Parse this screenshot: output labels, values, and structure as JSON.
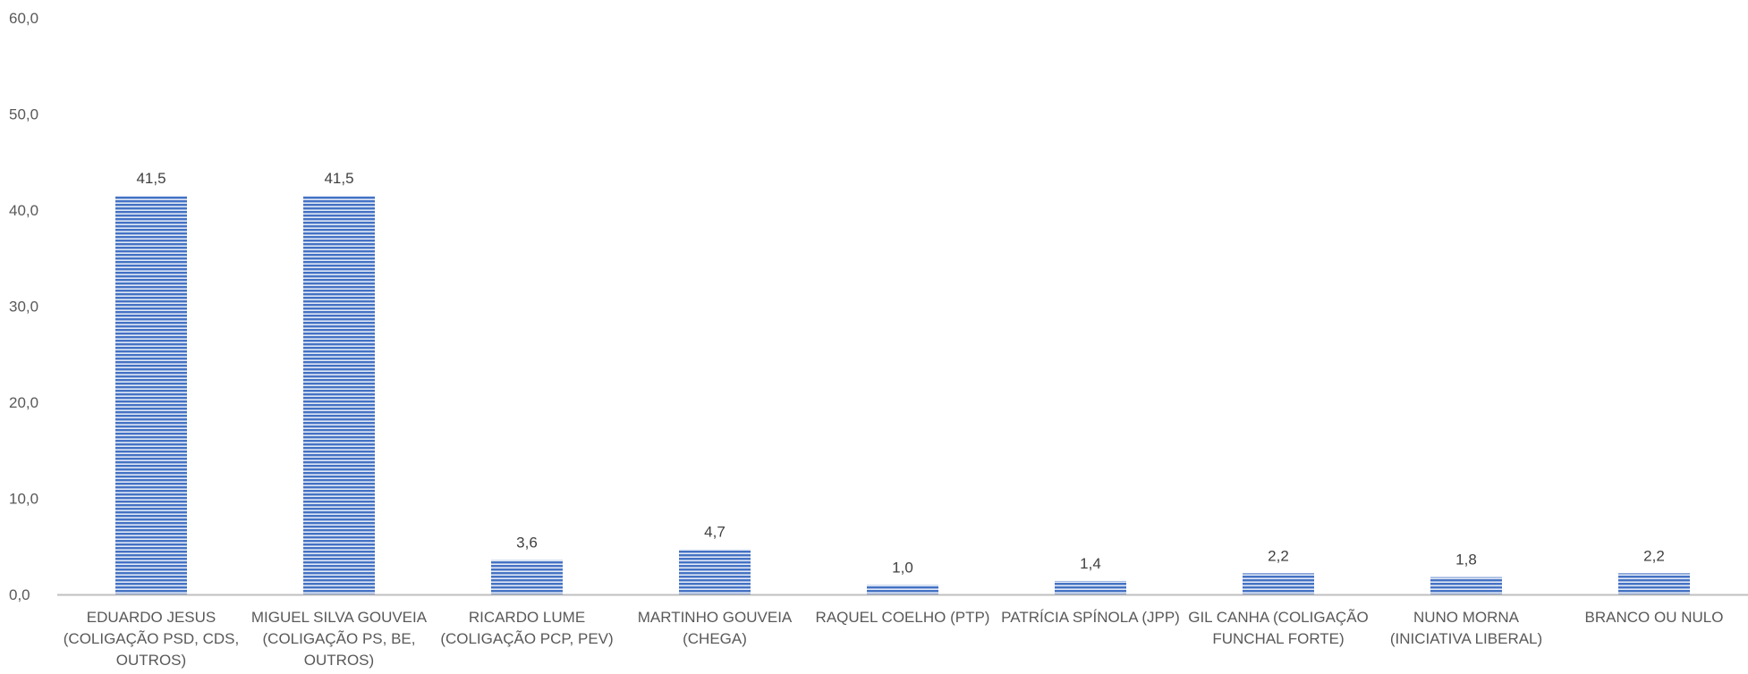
{
  "chart_data": {
    "type": "bar",
    "title": "",
    "xlabel": "",
    "ylabel": "",
    "ylim": [
      0,
      60
    ],
    "yticks": [
      "0,0",
      "10,0",
      "20,0",
      "30,0",
      "40,0",
      "50,0",
      "60,0"
    ],
    "grid": false,
    "legend": "none",
    "categories": [
      [
        "EDUARDO JESUS",
        "(COLIGAÇÃO PSD, CDS,",
        "OUTROS)"
      ],
      [
        "MIGUEL SILVA GOUVEIA",
        "(COLIGAÇÃO PS, BE,",
        "OUTROS)"
      ],
      [
        "RICARDO LUME",
        "(COLIGAÇÃO PCP, PEV)"
      ],
      [
        "MARTINHO GOUVEIA",
        "(CHEGA)"
      ],
      [
        "RAQUEL COELHO (PTP)"
      ],
      [
        "PATRÍCIA SPÍNOLA (JPP)"
      ],
      [
        "GIL CANHA (COLIGAÇÃO",
        "FUNCHAL FORTE)"
      ],
      [
        "NUNO MORNA",
        "(INICIATIVA LIBERAL)"
      ],
      [
        "BRANCO OU NULO"
      ]
    ],
    "values": [
      41.5,
      41.5,
      3.6,
      4.7,
      1.0,
      1.4,
      2.2,
      1.8,
      2.2
    ],
    "data_labels": [
      "41,5",
      "41,5",
      "3,6",
      "4,7",
      "1,0",
      "1,4",
      "2,2",
      "1,8",
      "2,2"
    ],
    "colors": {
      "bar_fill": "#4472c4",
      "bar_stripe": "#ffffff",
      "axis_line": "#bfbfbf"
    }
  }
}
